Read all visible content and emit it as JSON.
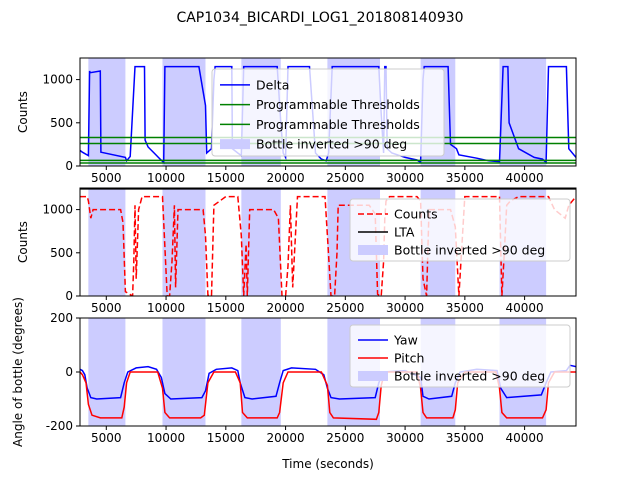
{
  "figure_title": "CAP1034_BICARDI_LOG1_201808140930",
  "chart_data": [
    {
      "type": "line",
      "ylabel": "Counts",
      "xlabel": "",
      "xlim": [
        2800,
        44300
      ],
      "ylim": [
        0,
        1250
      ],
      "xticks": [
        5000,
        10000,
        15000,
        20000,
        25000,
        30000,
        35000,
        40000
      ],
      "yticks": [
        0,
        500,
        1000
      ],
      "bands_label": "Bottle inverted >90 deg",
      "bands": [
        [
          3500,
          6600
        ],
        [
          9700,
          13300
        ],
        [
          16300,
          19600
        ],
        [
          23500,
          27900
        ],
        [
          31300,
          34200
        ],
        [
          37900,
          41800
        ]
      ],
      "series": [
        {
          "name": "Delta",
          "color": "#0000ff",
          "style": "solid",
          "x": [
            2800,
            3000,
            3500,
            3600,
            3650,
            4500,
            4550,
            6600,
            6700,
            7000,
            7400,
            7500,
            7600,
            8200,
            8250,
            8500,
            9000,
            9500,
            9800,
            9900,
            10100,
            10500,
            10550,
            12700,
            12750,
            13300,
            13400,
            13800,
            14000,
            14100,
            14200,
            15500,
            15550,
            16000,
            16300,
            16500,
            16600,
            17500,
            17550,
            19200,
            19300,
            19600,
            19800,
            20000,
            20200,
            20300,
            20500,
            22000,
            22500,
            23000,
            23400,
            23600,
            23900,
            24000,
            26900,
            27000,
            27800,
            28000,
            28200,
            28300,
            28400,
            28500,
            28900,
            30000,
            31000,
            31300,
            31500,
            31600,
            32200,
            32300,
            32500,
            32600,
            33600,
            33800,
            34300,
            34500,
            36000,
            37000,
            37900,
            38200,
            38300,
            38500,
            38600,
            38700,
            39500,
            40800,
            41500,
            41800,
            42000,
            42300,
            43400,
            43500,
            43700,
            44300
          ],
          "y": [
            180,
            160,
            120,
            1100,
            1080,
            1100,
            160,
            100,
            60,
            110,
            1150,
            1150,
            1150,
            1150,
            300,
            220,
            150,
            80,
            40,
            1150,
            1150,
            1150,
            1150,
            1150,
            1150,
            700,
            150,
            200,
            1000,
            1150,
            1150,
            1150,
            200,
            150,
            120,
            1150,
            1150,
            1150,
            1150,
            1150,
            1150,
            500,
            150,
            100,
            1150,
            1150,
            1150,
            1150,
            150,
            80,
            60,
            150,
            1150,
            1150,
            1150,
            1150,
            1150,
            600,
            150,
            1150,
            1150,
            200,
            150,
            100,
            70,
            40,
            1000,
            1150,
            1150,
            1150,
            1150,
            1150,
            1150,
            250,
            200,
            130,
            90,
            60,
            50,
            1150,
            1150,
            1150,
            1150,
            500,
            200,
            100,
            80,
            40,
            1150,
            1150,
            1150,
            1150,
            200,
            100
          ]
        },
        {
          "name": "Programmable Thresholds",
          "color": "#008000",
          "style": "solid",
          "x": [
            2800,
            44300
          ],
          "y": [
            330,
            330
          ]
        },
        {
          "name": "Programmable Thresholds",
          "color": "#008000",
          "style": "solid",
          "x": [
            2800,
            44300
          ],
          "y": [
            260,
            260
          ]
        },
        {
          "name": "",
          "color": "#008000",
          "style": "solid",
          "x": [
            2800,
            44300
          ],
          "y": [
            65,
            65
          ]
        },
        {
          "name": "",
          "color": "#008000",
          "style": "solid",
          "x": [
            2800,
            44300
          ],
          "y": [
            35,
            35
          ]
        }
      ],
      "legend": "top-center",
      "legend_entries": [
        "Delta",
        "Programmable Thresholds",
        "Programmable Thresholds",
        "Bottle inverted >90 deg"
      ],
      "grid": false
    },
    {
      "type": "line",
      "ylabel": "Counts",
      "xlabel": "",
      "xlim": [
        2800,
        44300
      ],
      "ylim": [
        0,
        1250
      ],
      "xticks": [
        5000,
        10000,
        15000,
        20000,
        25000,
        30000,
        35000,
        40000
      ],
      "yticks": [
        0,
        500,
        1000
      ],
      "bands_label": "Bottle inverted >90 deg",
      "bands": [
        [
          3500,
          6600
        ],
        [
          9700,
          13300
        ],
        [
          16300,
          19600
        ],
        [
          23500,
          27900
        ],
        [
          31300,
          34200
        ],
        [
          37900,
          41800
        ]
      ],
      "series": [
        {
          "name": "Counts",
          "color": "#ff0000",
          "style": "dashed",
          "x": [
            2800,
            3100,
            3400,
            3500,
            3700,
            3900,
            6200,
            6400,
            6600,
            7200,
            7300,
            7400,
            7500,
            7700,
            8000,
            9500,
            9700,
            10100,
            10300,
            10500,
            10700,
            10800,
            11000,
            12800,
            13100,
            13300,
            13500,
            13800,
            14000,
            15000,
            15100,
            15500,
            16000,
            16300,
            16500,
            16700,
            16800,
            17000,
            17200,
            19000,
            19400,
            19700,
            20000,
            20200,
            20400,
            20600,
            21000,
            22000,
            23000,
            23300,
            23500,
            23800,
            24100,
            24300,
            24400,
            27000,
            27500,
            27700,
            28000,
            28200,
            28300,
            28400,
            28700,
            30000,
            31000,
            31300,
            31500,
            31800,
            32000,
            33800,
            34200,
            34500,
            35000,
            37500,
            37900,
            38100,
            38300,
            38500,
            38800,
            39500,
            40500,
            41000,
            41800,
            42000,
            42500,
            43400,
            43700,
            44300
          ],
          "y": [
            1150,
            1150,
            1150,
            1100,
            900,
            1000,
            1000,
            850,
            50,
            0,
            400,
            1050,
            200,
            1000,
            1150,
            1150,
            1150,
            0,
            0,
            400,
            1050,
            100,
            1000,
            1000,
            1000,
            700,
            10,
            0,
            1050,
            1150,
            1150,
            1150,
            1150,
            700,
            0,
            600,
            0,
            1000,
            1000,
            1000,
            900,
            0,
            0,
            350,
            1050,
            100,
            1150,
            1150,
            1150,
            1150,
            700,
            0,
            0,
            500,
            1050,
            1050,
            950,
            20,
            0,
            400,
            900,
            1100,
            1150,
            1150,
            1150,
            1100,
            200,
            0,
            1000,
            1000,
            800,
            0,
            1150,
            1150,
            1150,
            0,
            500,
            1050,
            1100,
            1150,
            1150,
            1150,
            1150,
            1150,
            1000,
            900,
            1050,
            1150
          ]
        },
        {
          "name": "LTA",
          "color": "#000000",
          "style": "solid",
          "x": [
            2800,
            44300
          ],
          "y": [
            1240,
            1240
          ]
        }
      ],
      "legend": "right",
      "legend_entries": [
        "Counts",
        "LTA",
        "Bottle inverted >90 deg"
      ],
      "grid": false
    },
    {
      "type": "line",
      "ylabel": "Angle of bottle (degrees)",
      "xlabel": "Time (seconds)",
      "xlim": [
        2800,
        44300
      ],
      "ylim": [
        -200,
        200
      ],
      "xticks": [
        5000,
        10000,
        15000,
        20000,
        25000,
        30000,
        35000,
        40000
      ],
      "yticks": [
        -200,
        0,
        200
      ],
      "bands_label": "Bottle inverted >90 deg",
      "bands": [
        [
          3500,
          6600
        ],
        [
          9700,
          13300
        ],
        [
          16300,
          19600
        ],
        [
          23500,
          27900
        ],
        [
          31300,
          34200
        ],
        [
          37900,
          41800
        ]
      ],
      "series": [
        {
          "name": "Yaw",
          "color": "#0000ff",
          "style": "solid",
          "x": [
            2800,
            3000,
            3200,
            3400,
            3700,
            4200,
            6200,
            6500,
            6800,
            7500,
            8500,
            9200,
            9600,
            9900,
            10400,
            13000,
            13300,
            13600,
            14200,
            15500,
            16000,
            16200,
            16600,
            17200,
            19200,
            19500,
            19800,
            20500,
            22500,
            23200,
            23500,
            23800,
            24500,
            27500,
            27800,
            28200,
            30000,
            31300,
            31500,
            32000,
            33900,
            34200,
            34600,
            36000,
            37700,
            38000,
            38500,
            41400,
            41800,
            42200,
            43500,
            43800,
            44300
          ],
          "y": [
            10,
            5,
            -10,
            -60,
            -95,
            -100,
            -95,
            -40,
            0,
            15,
            20,
            10,
            -20,
            -80,
            -100,
            -95,
            -70,
            -5,
            10,
            15,
            5,
            -40,
            -95,
            -100,
            -90,
            -40,
            5,
            15,
            10,
            -10,
            -60,
            -95,
            -100,
            -95,
            -40,
            0,
            5,
            -20,
            -90,
            -100,
            -90,
            -40,
            0,
            10,
            5,
            -60,
            -95,
            -85,
            -40,
            0,
            5,
            25,
            20
          ]
        },
        {
          "name": "Pitch",
          "color": "#ff0000",
          "style": "solid",
          "x": [
            2800,
            3000,
            3300,
            3500,
            3800,
            4500,
            6300,
            6500,
            6700,
            7000,
            9300,
            9700,
            9900,
            10300,
            12900,
            13200,
            13500,
            14000,
            15800,
            16200,
            16400,
            16800,
            19300,
            19500,
            19800,
            20200,
            23000,
            23500,
            23700,
            24000,
            27600,
            27800,
            28000,
            28300,
            31000,
            31300,
            31500,
            31800,
            34000,
            34200,
            34400,
            35000,
            37600,
            37900,
            38100,
            38500,
            41500,
            41800,
            42000,
            42500,
            43600,
            44300
          ],
          "y": [
            0,
            -10,
            -40,
            -120,
            -160,
            -170,
            -170,
            -130,
            -40,
            0,
            0,
            -60,
            -150,
            -170,
            -170,
            -160,
            -40,
            0,
            0,
            -40,
            -150,
            -170,
            -170,
            -150,
            -40,
            0,
            0,
            -50,
            -150,
            -170,
            -175,
            -150,
            -50,
            0,
            0,
            -60,
            -150,
            -170,
            -170,
            -140,
            -40,
            0,
            0,
            -60,
            -150,
            -170,
            -170,
            -140,
            -40,
            0,
            0,
            0
          ]
        }
      ],
      "legend": "right",
      "legend_entries": [
        "Yaw",
        "Pitch",
        "Bottle inverted >90 deg"
      ],
      "grid": false
    }
  ]
}
